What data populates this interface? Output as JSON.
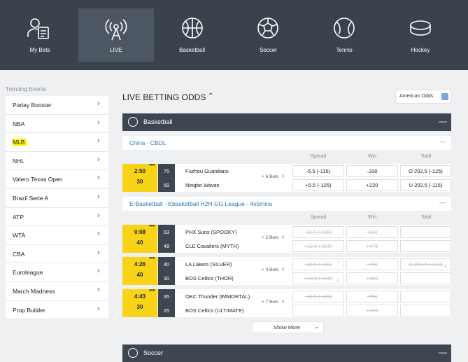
{
  "nav": [
    {
      "label": "My Bets"
    },
    {
      "label": "LIVE",
      "active": true
    },
    {
      "label": "Basketball"
    },
    {
      "label": "Soccer"
    },
    {
      "label": "Tennis"
    },
    {
      "label": "Hockey"
    }
  ],
  "sidebar": {
    "title": "Trending Events",
    "items": [
      {
        "label": "Parlay Booster"
      },
      {
        "label": "NBA"
      },
      {
        "label": "MLB",
        "highlighted": true
      },
      {
        "label": "NHL"
      },
      {
        "label": "Valero Texas Open"
      },
      {
        "label": "Brazil Serie A"
      },
      {
        "label": "ATP"
      },
      {
        "label": "WTA"
      },
      {
        "label": "CBA"
      },
      {
        "label": "Euroleague"
      },
      {
        "label": "March Madness"
      },
      {
        "label": "Prop Builder"
      }
    ]
  },
  "main": {
    "title": "LIVE BETTING ODDS",
    "odds_format": "American Odds",
    "show_more": "Show More",
    "sports": [
      {
        "name": "Basketball",
        "leagues": [
          {
            "name": "China - CBDL",
            "columns": [
              "Spread",
              "Win",
              "Total"
            ],
            "matches": [
              {
                "time": "2:50",
                "period": 30,
                "bets": "+ 6 Bets",
                "teams": [
                  {
                    "score": 75,
                    "name": "Fuzhou Guardians",
                    "spread": "-5.5 (-115)",
                    "win": "-330",
                    "total": "O 202.5 (-125)"
                  },
                  {
                    "score": 69,
                    "name": "Ningbo Waves",
                    "spread": "+5.5 (-125)",
                    "win": "+220",
                    "total": "U 202.5 (-115)"
                  }
                ]
              }
            ]
          },
          {
            "name": "E-Basketball - Ebasketball H2H GG League - 4x5mins",
            "columns": [
              "Spread",
              "Win",
              "Total"
            ],
            "matches": [
              {
                "time": "0:08",
                "period": 40,
                "bets": "+ 2 Bets",
                "suspended": true,
                "teams": [
                  {
                    "score": 63,
                    "name": "PHX Suns (SPOOKY)",
                    "spread": "-11.5 (-135)",
                    "win": "-900"
                  },
                  {
                    "score": 48,
                    "name": "CLE Cavaliers (MYTH)",
                    "spread": "+11.5 (-105)",
                    "win": "+475"
                  }
                ]
              },
              {
                "time": "4:26",
                "period": 40,
                "bets": "+ 4 Bets",
                "suspended": true,
                "teams": [
                  {
                    "score": 40,
                    "name": "LA Lakers (SILVER)",
                    "spread": "-10.5 (-105)",
                    "spread_trend": "up",
                    "win": "-780",
                    "total": "O 200.5 (-120)",
                    "total_trend": "down"
                  },
                  {
                    "score": 30,
                    "name": "BOS Celtics (THOR)",
                    "spread": "+10.5 (-135)",
                    "spread_trend": "down",
                    "win": "+400"
                  }
                ]
              },
              {
                "time": "4:43",
                "period": 30,
                "bets": "+ 7 Bets",
                "suspended": true,
                "teams": [
                  {
                    "score": 35,
                    "name": "OKC Thunder (IMMORTAL)",
                    "spread": "-12.5 (-115)",
                    "win": "-750"
                  },
                  {
                    "score": 25,
                    "name": "BOS Celtics (ULTIMATE)",
                    "win": "+425"
                  }
                ]
              }
            ]
          }
        ]
      },
      {
        "name": "Soccer"
      }
    ]
  }
}
